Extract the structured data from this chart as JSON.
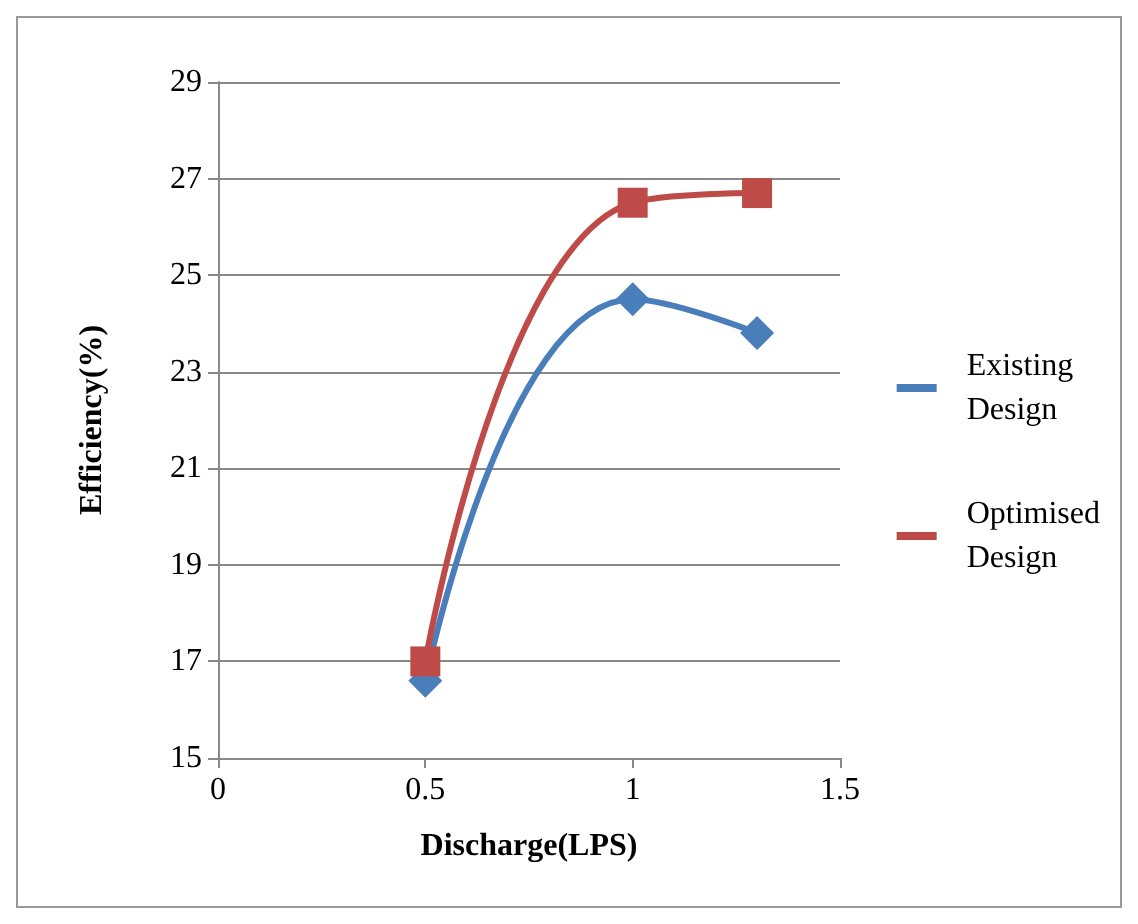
{
  "chart_data": {
    "type": "line",
    "xlabel": "Discharge(LPS)",
    "ylabel": "Efficiency(%)",
    "xlim": [
      0,
      1.5
    ],
    "xticks": [
      0,
      0.5,
      1,
      1.5
    ],
    "ylim": [
      15,
      29
    ],
    "yticks": [
      15,
      17,
      19,
      21,
      23,
      25,
      27,
      29
    ],
    "grid": "y",
    "legend": "right",
    "line_style": "solid",
    "series": [
      {
        "name": "Existing\nDesign",
        "color": "#4a7ebb",
        "marker": "diamond",
        "x": [
          0.5,
          1,
          1.3
        ],
        "values": [
          16.6,
          24.5,
          23.8
        ]
      },
      {
        "name": "Optimised\nDesign",
        "color": "#be4b48",
        "marker": "square",
        "x": [
          0.5,
          1,
          1.3
        ],
        "values": [
          17.0,
          26.5,
          26.7
        ]
      }
    ]
  }
}
